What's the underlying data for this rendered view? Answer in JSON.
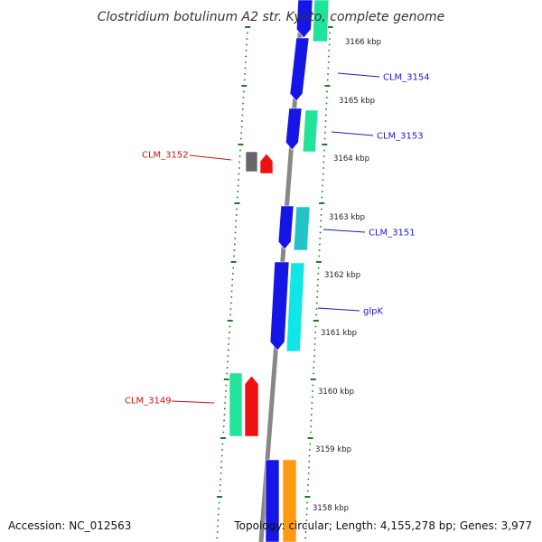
{
  "title": "Clostridium botulinum A2 str. Kyoto, complete genome",
  "footer": {
    "accession": "Accession: NC_012563",
    "topology": "Topology: circular; Length: 4,155,278 bp; Genes: 3,977"
  },
  "colors": {
    "backbone": "#888888",
    "tick": "#1f7a1f",
    "forward_label": "#1a1acc",
    "reverse_label": "#d01010",
    "blue": "#1515e6",
    "seagreen": "#22e39a",
    "cyan": "#11e6e6",
    "teal": "#22c4c8",
    "red": "#ee1111",
    "grey": "#666666",
    "orange": "#ff9a10"
  },
  "kbp_labels": [
    "3166 kbp",
    "3165 kbp",
    "3164 kbp",
    "3163 kbp",
    "3162 kbp",
    "3161 kbp",
    "3160 kbp",
    "3159 kbp",
    "3158 kbp"
  ],
  "gene_labels": [
    {
      "name": "CLM_3154",
      "strand": "forward"
    },
    {
      "name": "CLM_3153",
      "strand": "forward"
    },
    {
      "name": "CLM_3152",
      "strand": "reverse"
    },
    {
      "name": "CLM_3151",
      "strand": "forward"
    },
    {
      "name": "glpK",
      "strand": "forward"
    },
    {
      "name": "CLM_3149",
      "strand": "reverse"
    }
  ],
  "genes": [
    {
      "name": "top-blue-gene",
      "color": "blue"
    },
    {
      "name": "top-seagreen-gene",
      "color": "seagreen"
    },
    {
      "name": "clm-3154-gene",
      "color": "blue"
    },
    {
      "name": "clm-3153-blue-gene",
      "color": "blue"
    },
    {
      "name": "clm-3153-seagreen-gene",
      "color": "seagreen"
    },
    {
      "name": "clm-3152-grey-gene",
      "color": "grey"
    },
    {
      "name": "clm-3152-red-gene",
      "color": "red"
    },
    {
      "name": "clm-3151-blue-gene",
      "color": "blue"
    },
    {
      "name": "clm-3151-teal-gene",
      "color": "teal"
    },
    {
      "name": "glpk-blue-gene",
      "color": "blue"
    },
    {
      "name": "glpk-cyan-gene",
      "color": "cyan"
    },
    {
      "name": "clm-3149-seagreen-gene",
      "color": "seagreen"
    },
    {
      "name": "clm-3149-red-gene",
      "color": "red"
    },
    {
      "name": "bottom-blue-gene",
      "color": "blue"
    },
    {
      "name": "bottom-orange-gene",
      "color": "orange"
    }
  ]
}
